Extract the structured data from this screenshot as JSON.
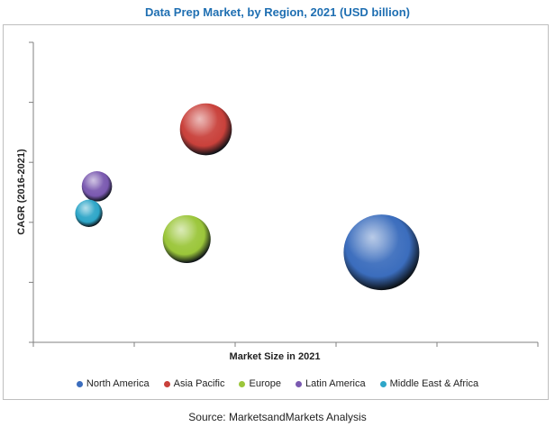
{
  "chart_data": {
    "type": "bubble",
    "title": "Data Prep Market, by Region, 2021 (USD billion)",
    "xlabel": "Market Size in 2021",
    "ylabel": "CAGR (2016-2021)",
    "xlim": [
      0,
      5
    ],
    "ylim": [
      0,
      5
    ],
    "grid": false,
    "legend_position": "bottom",
    "series": [
      {
        "name": "North America",
        "x": 3.45,
        "y": 1.5,
        "size": 100,
        "color": "#3b6dbd"
      },
      {
        "name": "Asia Pacific",
        "x": 1.71,
        "y": 3.55,
        "size": 47,
        "color": "#c9413b"
      },
      {
        "name": "Europe",
        "x": 1.52,
        "y": 1.72,
        "size": 40,
        "color": "#9bc63a"
      },
      {
        "name": "Latin America",
        "x": 0.63,
        "y": 2.6,
        "size": 16,
        "color": "#7a59b0"
      },
      {
        "name": "Middle East & Africa",
        "x": 0.55,
        "y": 2.15,
        "size": 13,
        "color": "#2ea6c8"
      }
    ]
  },
  "source": "Source: MarketsandMarkets Analysis"
}
